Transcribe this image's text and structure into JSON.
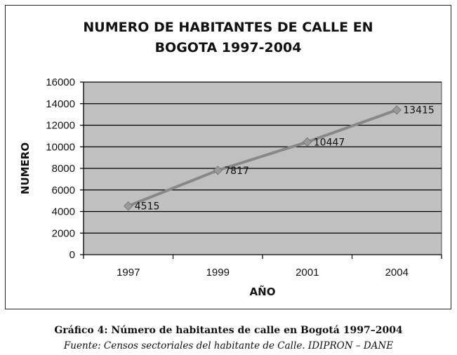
{
  "chart_data": {
    "type": "line",
    "title": "NUMERO DE HABITANTES DE CALLE EN BOGOTA 1997-2004",
    "title_lines": [
      "NUMERO DE HABITANTES DE CALLE EN",
      "BOGOTA 1997-2004"
    ],
    "xlabel": "AÑO",
    "ylabel": "NUMERO",
    "categories": [
      "1997",
      "1999",
      "2001",
      "2004"
    ],
    "series": [
      {
        "values": [
          4515,
          7817,
          10447,
          13415
        ]
      }
    ],
    "data_labels": [
      "4515",
      "7817",
      "10447",
      "13415"
    ],
    "ylim": [
      0,
      16000
    ],
    "yticks": [
      "0",
      "2000",
      "4000",
      "6000",
      "8000",
      "10000",
      "12000",
      "14000",
      "16000"
    ],
    "grid": true,
    "plot_background": "#c0c0c0",
    "line_color": "#888888",
    "marker": "diamond"
  },
  "caption": {
    "title": "Gráfico 4: Número de habitantes de calle en Bogotá 1997–2004",
    "source": "Fuente: Censos sectoriales del habitante de Calle. IDIPRON – DANE"
  }
}
